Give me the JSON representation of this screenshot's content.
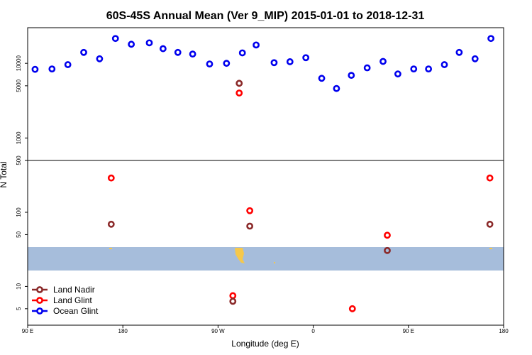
{
  "chart_data": {
    "type": "scatter",
    "title": "60S-45S Annual Mean (Ver 9_MIP)   2015-01-01 to 2018-12-31",
    "xlabel": "Longitude (deg E)",
    "ylabel": "N Total",
    "y_scale": "log",
    "x_ticks": [
      {
        "value": 90,
        "label": "90 E"
      },
      {
        "value": 180,
        "label": "180"
      },
      {
        "value": 270,
        "label": "90 W"
      },
      {
        "value": 360,
        "label": "0"
      },
      {
        "value": 450,
        "label": "90 E"
      },
      {
        "value": 540,
        "label": "180"
      }
    ],
    "x_range": [
      90,
      540
    ],
    "upper_panel": {
      "ylim": [
        500,
        30000
      ],
      "y_ticks": [
        500,
        1000,
        5000,
        10000
      ]
    },
    "lower_panel": {
      "ylim": [
        3,
        500
      ],
      "y_ticks": [
        5,
        10,
        50,
        100
      ]
    },
    "legend": {
      "placement": "bottom-left",
      "items": [
        {
          "label": "Land Nadir",
          "color": "#8b2a2a"
        },
        {
          "label": "Land Glint",
          "color": "#ff0000"
        },
        {
          "label": "Ocean Glint",
          "color": "#0000ee"
        }
      ]
    },
    "series": [
      {
        "name": "Ocean Glint",
        "color": "#0000ee",
        "panel": "upper",
        "points": [
          [
            97,
            8300
          ],
          [
            113,
            8400
          ],
          [
            128,
            9600
          ],
          [
            143,
            14000
          ],
          [
            158,
            11500
          ],
          [
            173,
            21500
          ],
          [
            188,
            18000
          ],
          [
            205,
            18800
          ],
          [
            218,
            15700
          ],
          [
            232,
            14000
          ],
          [
            246,
            13300
          ],
          [
            262,
            9800
          ],
          [
            278,
            10000
          ],
          [
            293,
            13800
          ],
          [
            306,
            17600
          ],
          [
            323,
            10200
          ],
          [
            338,
            10500
          ],
          [
            353,
            11900
          ],
          [
            368,
            6300
          ],
          [
            382,
            4600
          ],
          [
            396,
            6900
          ],
          [
            411,
            8700
          ],
          [
            426,
            10600
          ],
          [
            440,
            7200
          ],
          [
            455,
            8400
          ],
          [
            469,
            8400
          ],
          [
            484,
            9600
          ],
          [
            498,
            14000
          ],
          [
            513,
            11500
          ],
          [
            528,
            21500
          ]
        ]
      },
      {
        "name": "Land Nadir",
        "color": "#8b2a2a",
        "panel": "upper",
        "points": [
          [
            290,
            5400
          ]
        ]
      },
      {
        "name": "Land Glint",
        "color": "#ff0000",
        "panel": "upper",
        "points": [
          [
            290,
            4000
          ]
        ]
      },
      {
        "name": "Land Glint",
        "color": "#ff0000",
        "panel": "lower",
        "points": [
          [
            169,
            290
          ],
          [
            300,
            105
          ],
          [
            284,
            7.5
          ],
          [
            397,
            5
          ],
          [
            430,
            49
          ],
          [
            527,
            290
          ]
        ]
      },
      {
        "name": "Land Nadir",
        "color": "#8b2a2a",
        "panel": "lower",
        "points": [
          [
            169,
            69
          ],
          [
            300,
            65
          ],
          [
            284,
            6.3
          ],
          [
            430,
            30.5
          ],
          [
            527,
            69
          ]
        ]
      }
    ]
  }
}
